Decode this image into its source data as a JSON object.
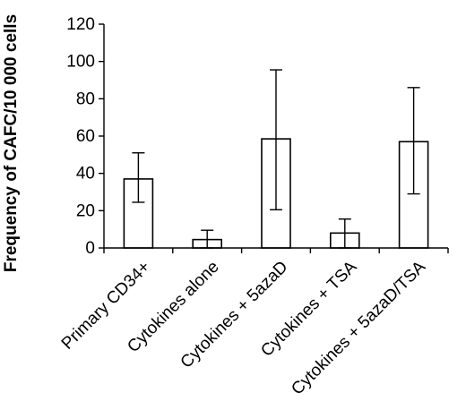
{
  "chart_data": {
    "type": "bar",
    "title": "",
    "xlabel": "",
    "ylabel": "Frequency of CAFC/10 000 cells",
    "ylim": [
      0,
      120
    ],
    "yticks": [
      0,
      20,
      40,
      60,
      80,
      100,
      120
    ],
    "categories": [
      "Primary CD34+",
      "Cytokines alone",
      "Cytokines + 5azaD",
      "Cytokines + TSA",
      "Cytokines + 5azaD/TSA"
    ],
    "values": [
      37,
      4.5,
      58.5,
      8,
      57
    ],
    "error_low": [
      24.5,
      0,
      20.5,
      0,
      29
    ],
    "error_high": [
      51,
      9.5,
      95.5,
      15.5,
      86
    ],
    "grid": false,
    "legend": "none"
  }
}
